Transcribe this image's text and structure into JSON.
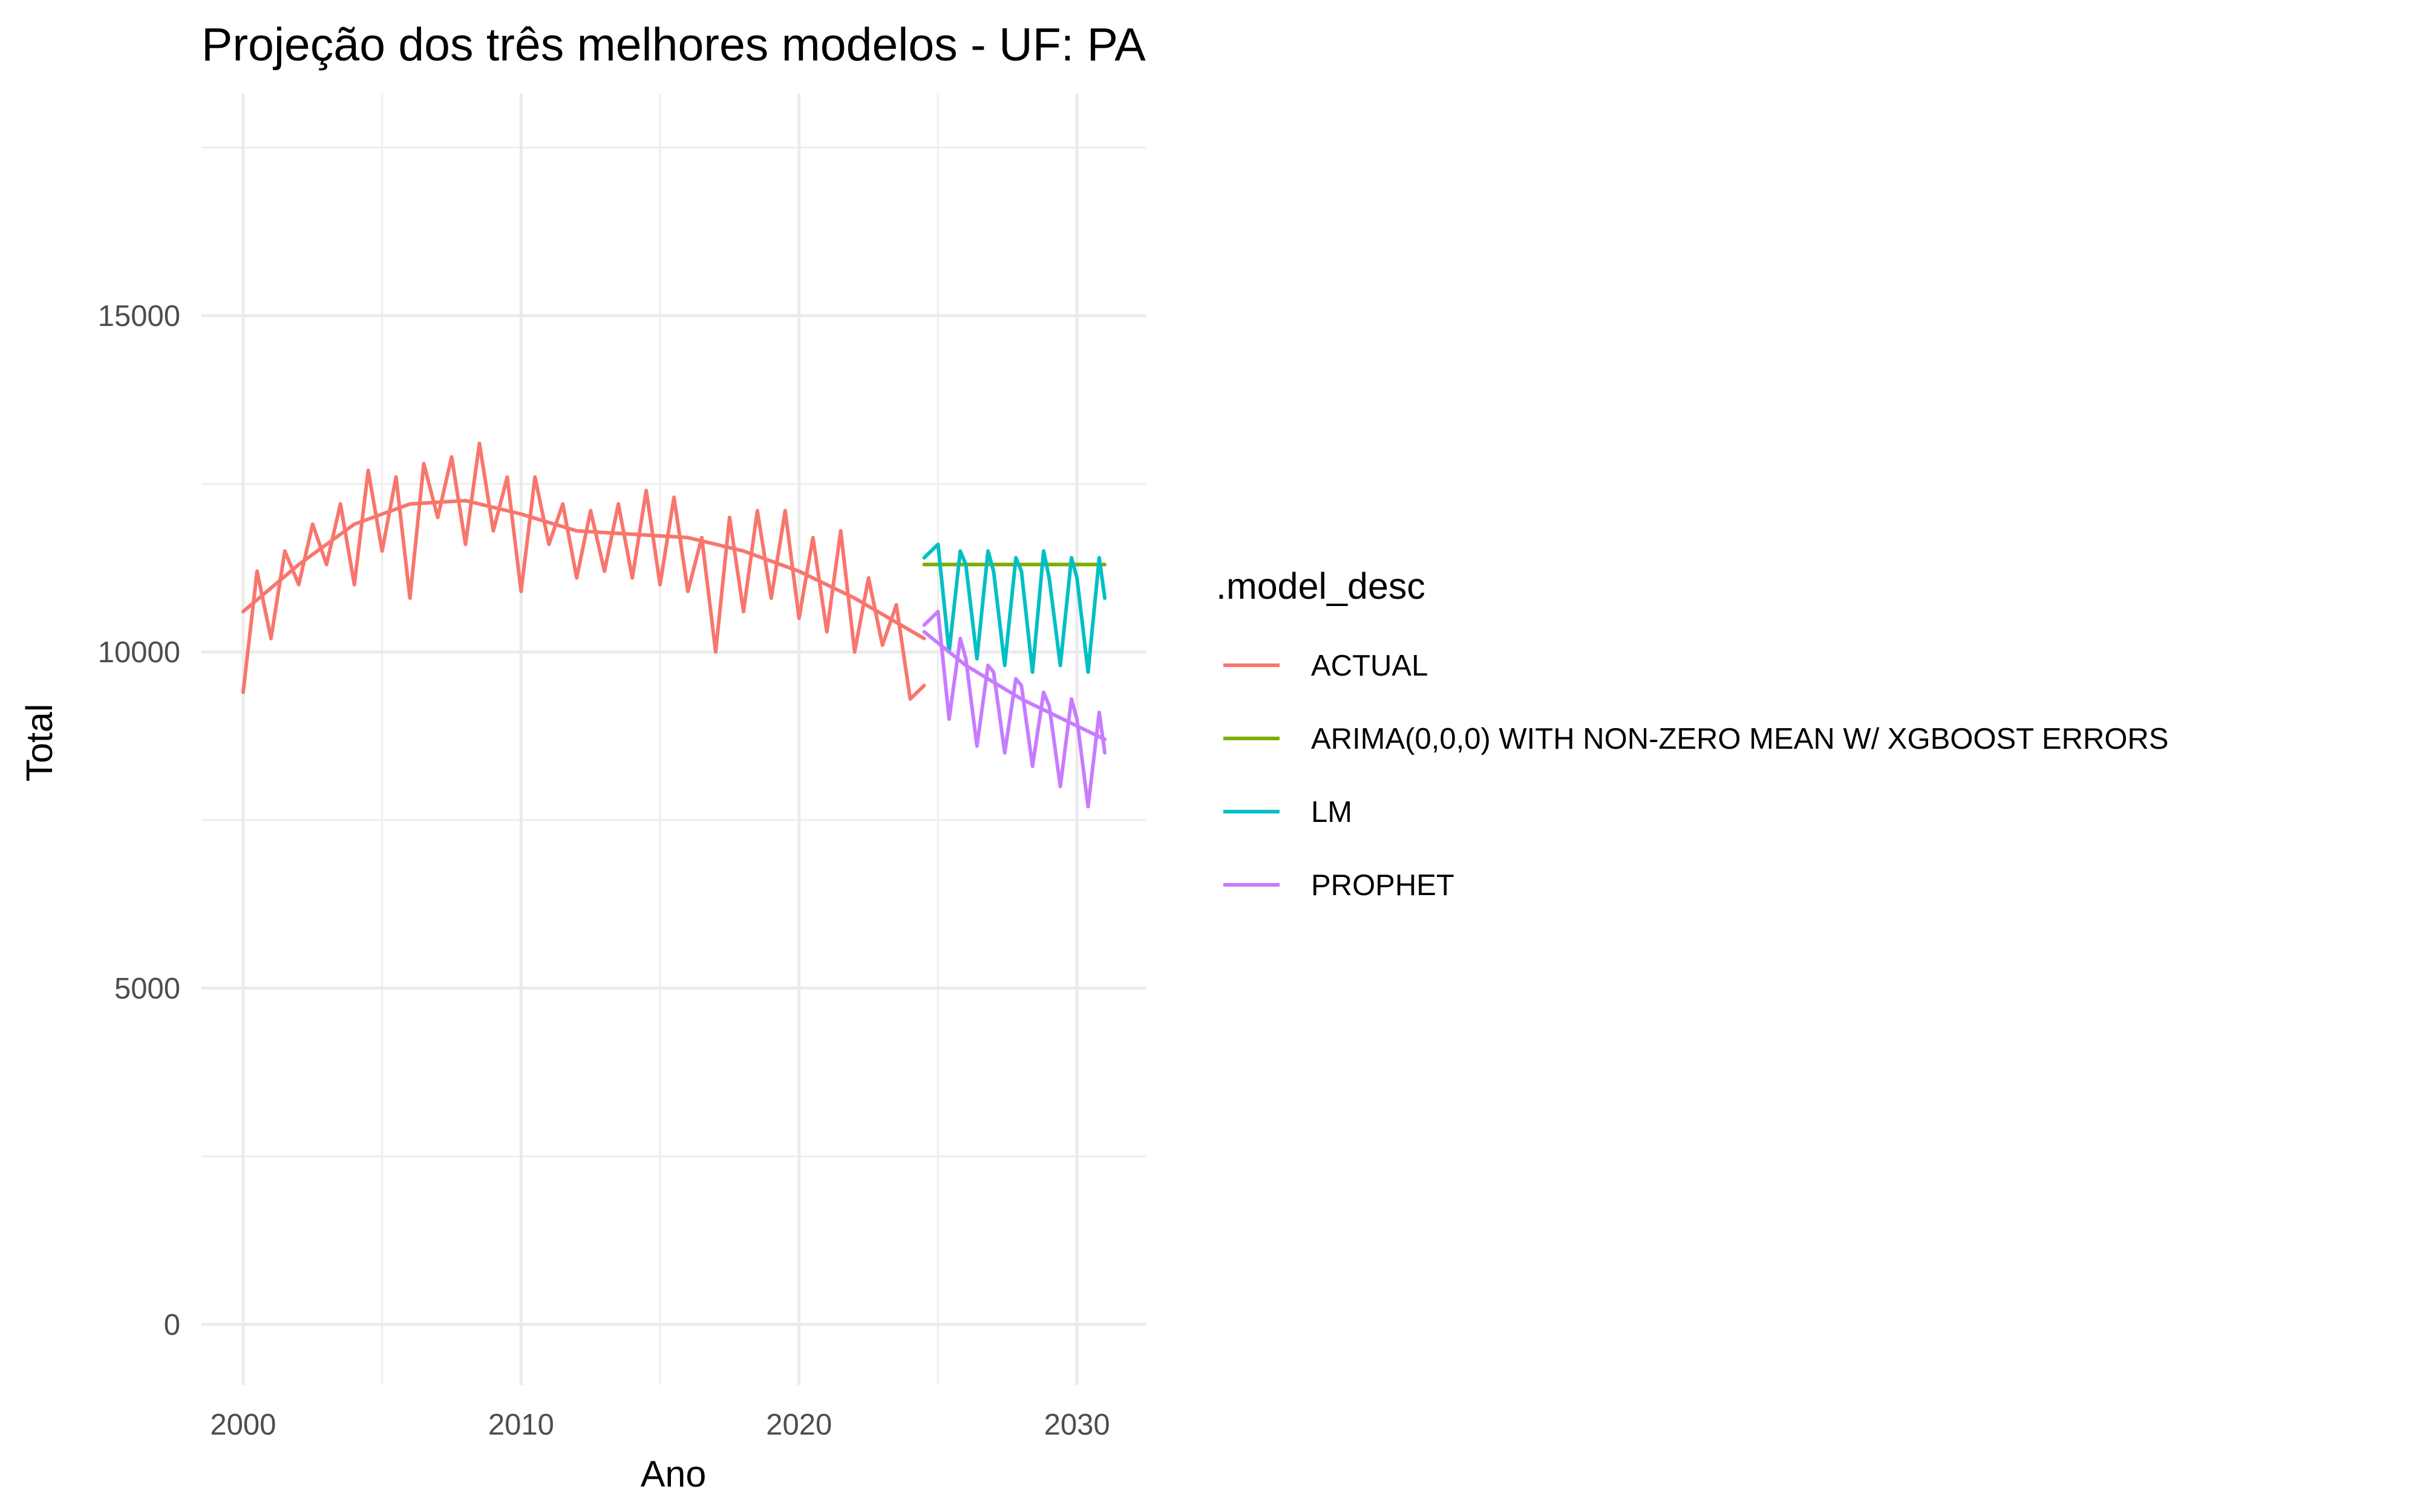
{
  "chart_data": {
    "type": "line",
    "title": "Projeção dos três melhores modelos - UF: PA",
    "xlabel": "Ano",
    "ylabel": "Total",
    "xlim": [
      1998.5,
      2032.5
    ],
    "ylim": [
      -900,
      18300
    ],
    "x_ticks": [
      2000,
      2010,
      2020,
      2030
    ],
    "y_ticks": [
      0,
      5000,
      10000,
      15000
    ],
    "grid": true,
    "legend": {
      "title": ".model_desc",
      "placement": "right",
      "entries": [
        "ACTUAL",
        "ARIMA(0,0,0) WITH NON-ZERO MEAN W/ XGBOOST ERRORS",
        "LM",
        "PROPHET"
      ]
    },
    "series": [
      {
        "name": "ACTUAL",
        "color": "#F8766D",
        "x": [
          2000.0,
          2000.5,
          2001.0,
          2001.5,
          2002.0,
          2002.5,
          2003.0,
          2003.5,
          2004.0,
          2004.5,
          2005.0,
          2005.5,
          2006.0,
          2006.5,
          2007.0,
          2007.5,
          2008.0,
          2008.5,
          2009.0,
          2009.5,
          2010.0,
          2010.5,
          2011.0,
          2011.5,
          2012.0,
          2012.5,
          2013.0,
          2013.5,
          2014.0,
          2014.5,
          2015.0,
          2015.5,
          2016.0,
          2016.5,
          2017.0,
          2017.5,
          2018.0,
          2018.5,
          2019.0,
          2019.5,
          2020.0,
          2020.5,
          2021.0,
          2021.5,
          2022.0,
          2022.5,
          2023.0,
          2023.5,
          2024.0,
          2024.5
        ],
        "y": [
          9400,
          11200,
          10200,
          11500,
          11000,
          11900,
          11300,
          12200,
          11000,
          12700,
          11500,
          12600,
          10800,
          12800,
          12000,
          12900,
          11600,
          13100,
          11800,
          12600,
          10900,
          12600,
          11600,
          12200,
          11100,
          12100,
          11200,
          12200,
          11100,
          12400,
          11000,
          12300,
          10900,
          11700,
          10000,
          12000,
          10600,
          12100,
          10800,
          12100,
          10500,
          11700,
          10300,
          11800,
          10000,
          11100,
          10100,
          10700,
          9300,
          9500
        ]
      },
      {
        "name": "ACTUAL-trend",
        "color": "#F8766D",
        "x": [
          2000,
          2002,
          2004,
          2006,
          2008,
          2010,
          2012,
          2014,
          2016,
          2018,
          2020,
          2022,
          2024.5
        ],
        "y": [
          10600,
          11300,
          11900,
          12200,
          12250,
          12050,
          11800,
          11750,
          11700,
          11500,
          11200,
          10800,
          10200
        ]
      },
      {
        "name": "ARIMA(0,0,0) WITH NON-ZERO MEAN W/ XGBOOST ERRORS",
        "color": "#7CAE00",
        "x": [
          2024.5,
          2031.0
        ],
        "y": [
          11300,
          11300
        ]
      },
      {
        "name": "LM",
        "color": "#00BFC4",
        "x": [
          2024.5,
          2025.0,
          2025.4,
          2025.8,
          2026.0,
          2026.4,
          2026.8,
          2027.0,
          2027.4,
          2027.8,
          2028.0,
          2028.4,
          2028.8,
          2029.0,
          2029.4,
          2029.8,
          2030.0,
          2030.4,
          2030.8,
          2031.0
        ],
        "y": [
          11400,
          11600,
          10000,
          11500,
          11300,
          9900,
          11500,
          11200,
          9800,
          11400,
          11200,
          9700,
          11500,
          11100,
          9800,
          11400,
          11100,
          9700,
          11400,
          10800
        ]
      },
      {
        "name": "PROPHET",
        "color": "#C77CFF",
        "x": [
          2024.5,
          2025.0,
          2025.4,
          2025.8,
          2026.0,
          2026.4,
          2026.8,
          2027.0,
          2027.4,
          2027.8,
          2028.0,
          2028.4,
          2028.8,
          2029.0,
          2029.4,
          2029.8,
          2030.0,
          2030.4,
          2030.8,
          2031.0
        ],
        "y": [
          10400,
          10600,
          9000,
          10200,
          9900,
          8600,
          9800,
          9700,
          8500,
          9600,
          9500,
          8300,
          9400,
          9200,
          8000,
          9300,
          9000,
          7700,
          9100,
          8500
        ]
      },
      {
        "name": "PROPHET-trend",
        "color": "#C77CFF",
        "x": [
          2024.5,
          2026,
          2028,
          2030,
          2031
        ],
        "y": [
          10300,
          9800,
          9300,
          8900,
          8700
        ]
      }
    ]
  }
}
